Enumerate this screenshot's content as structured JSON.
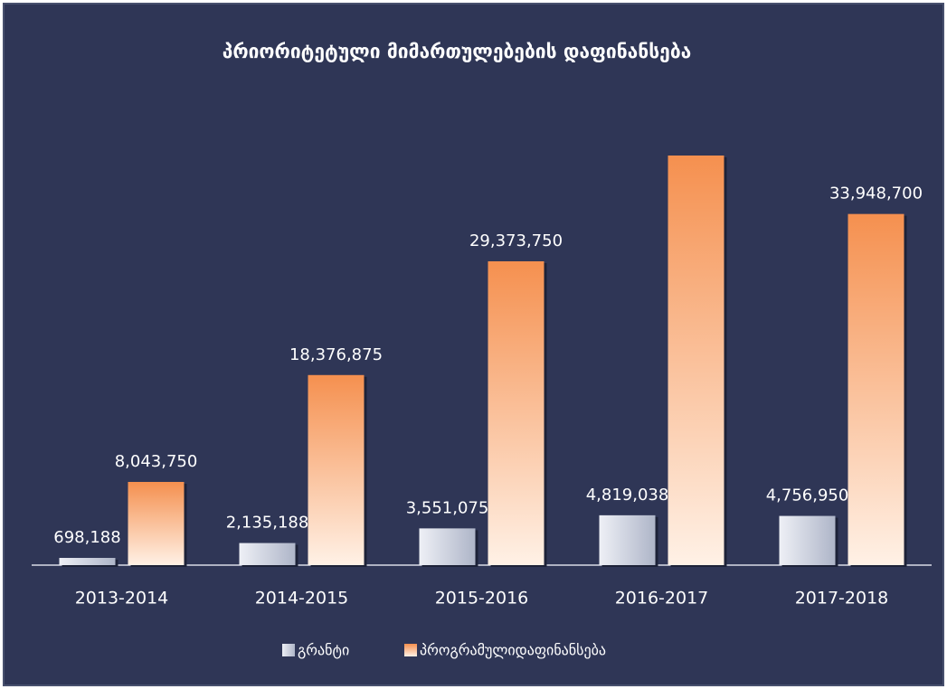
{
  "chart_data": {
    "type": "bar",
    "title": "პრიორიტეტული მიმართულებების დაფინანსება",
    "categories": [
      "2013-2014",
      "2014-2015",
      "2015-2016",
      "2016-2017",
      "2017-2018"
    ],
    "series": [
      {
        "name": "გრანტი",
        "color": "#aeb5c8",
        "values": [
          698188,
          2135188,
          3551075,
          4819038,
          4756950
        ],
        "value_labels": [
          "698,188",
          "2,135,188",
          "3,551,075",
          "4,819,038",
          "4,756,950"
        ]
      },
      {
        "name": "პროგრამულიდაფინანსება",
        "color": "#f5904f",
        "values": [
          8043750,
          18376875,
          29373750,
          39600000,
          33948700
        ],
        "value_labels": [
          "8,043,750",
          "18,376,875",
          "29,373,750",
          null,
          "33,948,700"
        ]
      }
    ],
    "legend": "bottom"
  }
}
